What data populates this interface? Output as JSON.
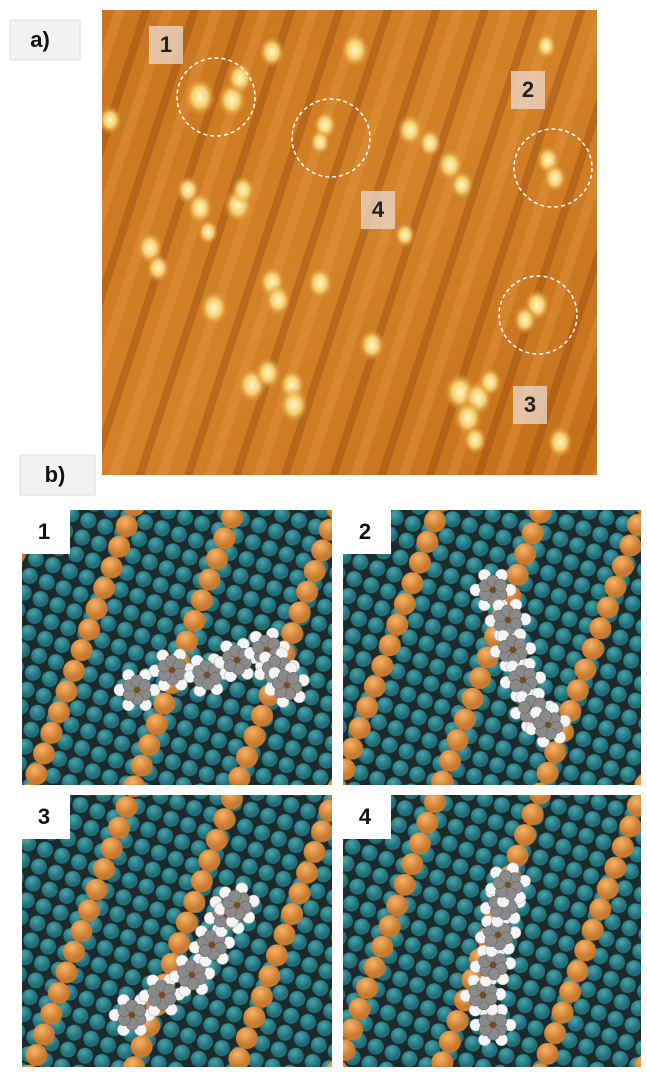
{
  "panel_a": {
    "label": "a)",
    "markers": [
      "1",
      "2",
      "3",
      "4"
    ]
  },
  "panel_b": {
    "label": "b)",
    "models": [
      {
        "label": "1"
      },
      {
        "label": "2"
      },
      {
        "label": "3"
      },
      {
        "label": "4"
      }
    ]
  }
}
